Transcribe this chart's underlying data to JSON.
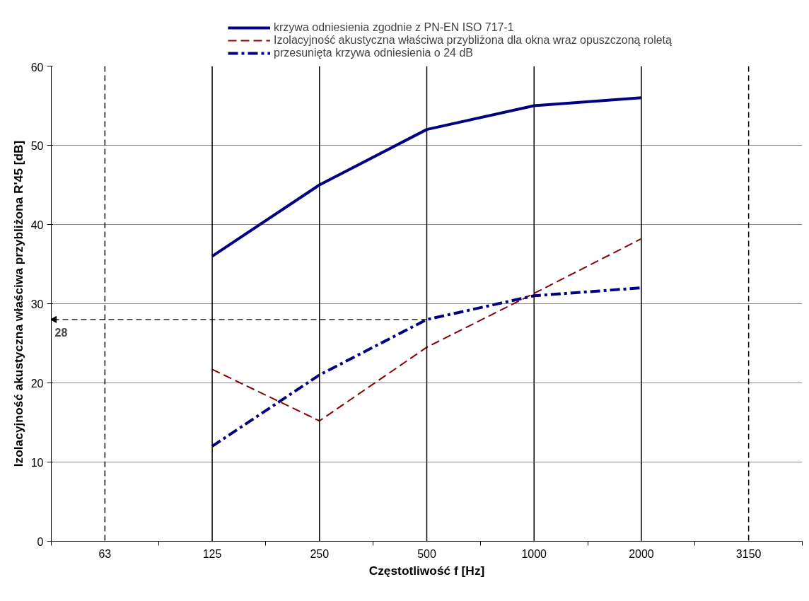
{
  "chart_data": {
    "type": "line",
    "xlabel": "Częstotliwość f [Hz]",
    "ylabel": "Izolacyjność akustyczna właściwa przybliżona R'45 [dB]",
    "categories": [
      "63",
      "125",
      "250",
      "500",
      "1000",
      "2000",
      "3150"
    ],
    "series": [
      {
        "name": "krzywa odniesienia zgodnie z PN-EN ISO 717-1",
        "color": "#000080",
        "line_style": "solid",
        "values": [
          null,
          36,
          45,
          52,
          55,
          56,
          null
        ]
      },
      {
        "name": "Izolacyjność akustyczna właściwa przybliżona dla okna wraz opuszczoną roletą",
        "color": "#8b0000",
        "line_style": "dashed",
        "values": [
          null,
          21.7,
          15.2,
          24.5,
          31.3,
          38.2,
          null
        ]
      },
      {
        "name": "przesunięta krzywa odniesienia o 24 dB",
        "color": "#000080",
        "line_style": "dashdot",
        "values": [
          null,
          12,
          21,
          28,
          31,
          32,
          null
        ]
      }
    ],
    "ylim": [
      0,
      60
    ],
    "yticks": [
      0,
      10,
      20,
      30,
      40,
      50,
      60
    ],
    "grid": "y",
    "legend": "top",
    "ref_lines": [
      {
        "axis": "x",
        "value": "63",
        "line_style": "dashed",
        "color": "#000000"
      },
      {
        "axis": "x",
        "value": "125",
        "line_style": "solid",
        "color": "#000000"
      },
      {
        "axis": "x",
        "value": "250",
        "line_style": "solid",
        "color": "#000000"
      },
      {
        "axis": "x",
        "value": "500",
        "line_style": "solid",
        "color": "#000000"
      },
      {
        "axis": "x",
        "value": "1000",
        "line_style": "solid",
        "color": "#000000"
      },
      {
        "axis": "x",
        "value": "2000",
        "line_style": "solid",
        "color": "#000000"
      },
      {
        "axis": "x",
        "value": "3150",
        "line_style": "dashed",
        "color": "#000000"
      }
    ],
    "annotations": [
      {
        "text": "28",
        "x": "500",
        "y": 28
      }
    ]
  }
}
